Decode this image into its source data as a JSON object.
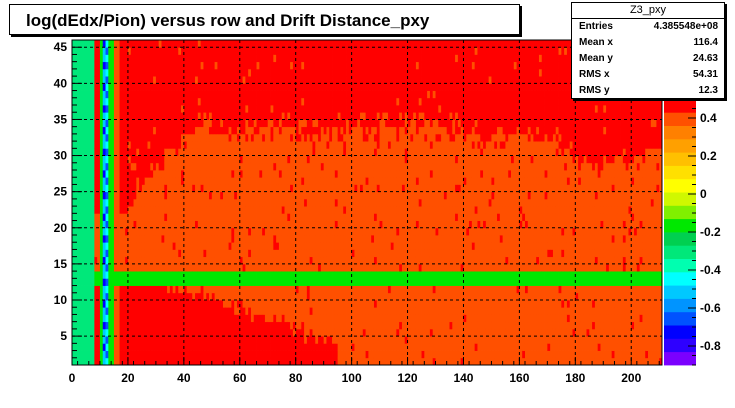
{
  "chart_data": {
    "type": "heatmap",
    "title": "log(dEdx/Pion) versus row and Drift Distance_pxy",
    "xlabel": "",
    "ylabel": "",
    "xlim": [
      0,
      211
    ],
    "ylim": [
      1,
      46
    ],
    "x_ticks": [
      "0",
      "20",
      "40",
      "60",
      "80",
      "100",
      "120",
      "140",
      "160",
      "180",
      "200"
    ],
    "y_ticks": [
      "5",
      "10",
      "15",
      "20",
      "25",
      "30",
      "35",
      "40",
      "45"
    ],
    "z_ticks": [
      "-0.8",
      "-0.6",
      "-0.4",
      "-0.2",
      "0",
      "0.2",
      "0.4"
    ],
    "zlim": [
      -0.9,
      0.5
    ],
    "grid": true,
    "palette": [
      "#7b00ff",
      "#2e00ff",
      "#0000ff",
      "#0052ff",
      "#0094ff",
      "#00c8ff",
      "#00ffff",
      "#00ffb0",
      "#00e87a",
      "#00d050",
      "#00e800",
      "#80f000",
      "#d0f800",
      "#ffff00",
      "#ffe000",
      "#ffc000",
      "#ffa000",
      "#ff8000",
      "#ff5000",
      "#ff0000"
    ],
    "stats": {
      "name": "Z3_pxy",
      "entries": [
        "Entries",
        "4.385548e+08"
      ],
      "mean_x": [
        "Mean x",
        "116.4"
      ],
      "mean_y": [
        "Mean y",
        "24.63"
      ],
      "rms_x": [
        "RMS x",
        "54.31"
      ],
      "rms_y": [
        "RMS y",
        "12.3"
      ]
    }
  }
}
